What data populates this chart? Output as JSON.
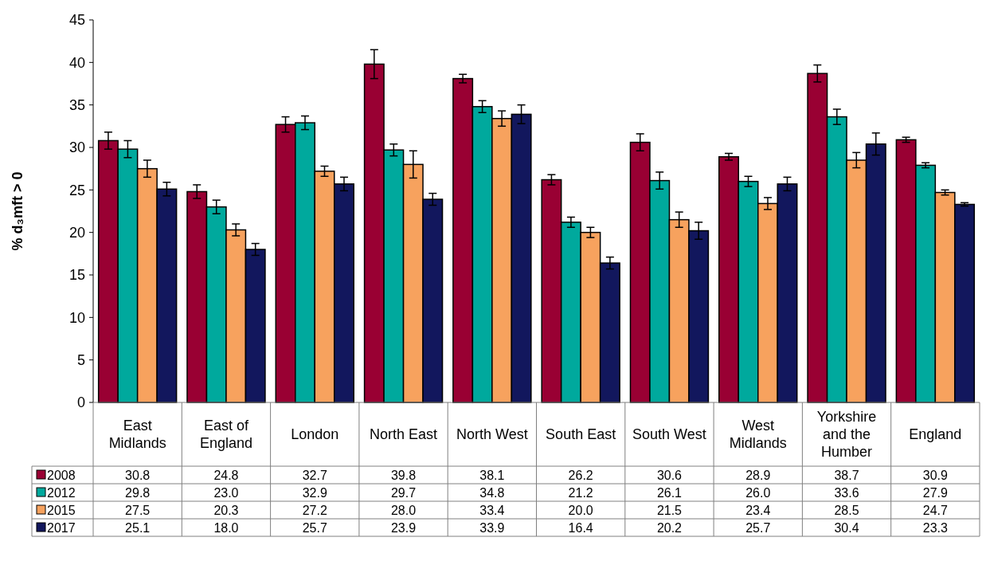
{
  "chart_data": {
    "type": "bar",
    "ylabel": "% d₃mft > 0",
    "categories": [
      "East Midlands",
      "East of England",
      "London",
      "North East",
      "North West",
      "South East",
      "South West",
      "West Midlands",
      "Yorkshire and the Humber",
      "England"
    ],
    "series": [
      {
        "name": "2008",
        "color": "#990033",
        "values": [
          30.8,
          24.8,
          32.7,
          39.8,
          38.1,
          26.2,
          30.6,
          28.9,
          38.7,
          30.9
        ],
        "errors": [
          1.0,
          0.8,
          0.9,
          1.7,
          0.5,
          0.6,
          1.0,
          0.4,
          1.0,
          0.3
        ],
        "value_labels": [
          "30.8",
          "24.8",
          "32.7",
          "39.8",
          "38.1",
          "26.2",
          "30.6",
          "28.9",
          "38.7",
          "30.9"
        ]
      },
      {
        "name": "2012",
        "color": "#00a99d",
        "values": [
          29.8,
          23.0,
          32.9,
          29.7,
          34.8,
          21.2,
          26.1,
          26.0,
          33.6,
          27.9
        ],
        "errors": [
          1.0,
          0.8,
          0.8,
          0.7,
          0.7,
          0.6,
          1.0,
          0.6,
          0.9,
          0.3
        ],
        "value_labels": [
          "29.8",
          "23.0",
          "32.9",
          "29.7",
          "34.8",
          "21.2",
          "26.1",
          "26.0",
          "33.6",
          "27.9"
        ]
      },
      {
        "name": "2015",
        "color": "#f7a25e",
        "values": [
          27.5,
          20.3,
          27.2,
          28.0,
          33.4,
          20.0,
          21.5,
          23.4,
          28.5,
          24.7
        ],
        "errors": [
          1.0,
          0.7,
          0.6,
          1.6,
          0.9,
          0.6,
          0.9,
          0.7,
          0.9,
          0.3
        ],
        "value_labels": [
          "27.5",
          "20.3",
          "27.2",
          "28.0",
          "33.4",
          "20.0",
          "21.5",
          "23.4",
          "28.5",
          "24.7"
        ]
      },
      {
        "name": "2017",
        "color": "#12175d",
        "values": [
          25.1,
          18.0,
          25.7,
          23.9,
          33.9,
          16.4,
          20.2,
          25.7,
          30.4,
          23.3
        ],
        "errors": [
          0.8,
          0.7,
          0.8,
          0.7,
          1.1,
          0.7,
          1.0,
          0.8,
          1.3,
          0.2
        ],
        "value_labels": [
          "25.1",
          "18.0",
          "25.7",
          "23.9",
          "33.9",
          "16.4",
          "20.2",
          "25.7",
          "30.4",
          "23.3"
        ]
      }
    ],
    "ylim": [
      0,
      45
    ],
    "yticks": [
      0,
      5,
      10,
      15,
      20,
      25,
      30,
      35,
      40,
      45
    ],
    "legend": "bottom left"
  }
}
